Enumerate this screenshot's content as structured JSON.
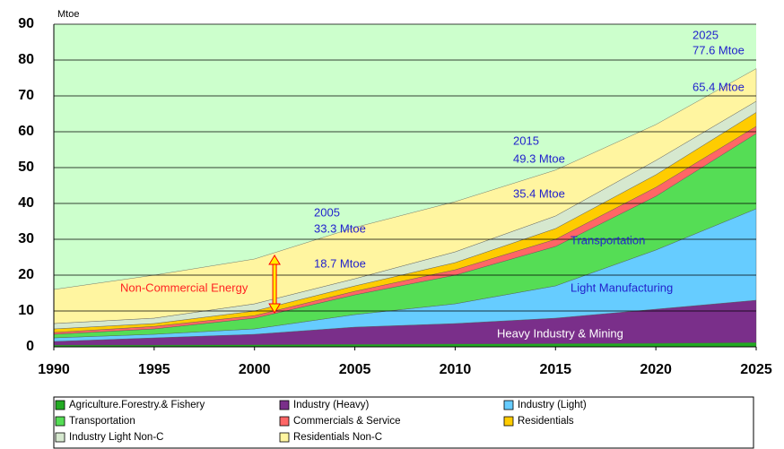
{
  "chart_data": {
    "type": "stacked_area",
    "y_label": "Mtoe",
    "x": [
      1990,
      1995,
      2000,
      2005,
      2010,
      2015,
      2020,
      2025
    ],
    "xlim": [
      1990,
      2025
    ],
    "xticks": [
      1990,
      1995,
      2000,
      2005,
      2010,
      2015,
      2020,
      2025
    ],
    "ylim": [
      0,
      90
    ],
    "yticks": [
      0,
      10,
      20,
      30,
      40,
      50,
      60,
      70,
      80,
      90
    ],
    "grid": true,
    "legend": "bottom",
    "series": [
      {
        "name": "Agriculture.Forestry.& Fishery",
        "color": "#22aa22",
        "values": [
          0.5,
          0.5,
          0.6,
          0.7,
          0.8,
          0.9,
          1.0,
          1.2
        ]
      },
      {
        "name": "Industry (Heavy)",
        "color": "#7a2f8a",
        "values": [
          1.0,
          2.0,
          2.9,
          4.8,
          5.7,
          7.1,
          9.5,
          11.8
        ]
      },
      {
        "name": "Industry (Light)",
        "color": "#66ccff",
        "values": [
          1.0,
          1.0,
          1.5,
          3.5,
          5.5,
          9.0,
          16.5,
          25.5
        ]
      },
      {
        "name": "Transportation",
        "color": "#55dd55",
        "values": [
          1.0,
          1.5,
          3.0,
          5.5,
          8.0,
          11.0,
          15.0,
          21.0
        ]
      },
      {
        "name": "Commercials & Service",
        "color": "#ff6666",
        "values": [
          0.5,
          0.7,
          0.7,
          1.0,
          1.5,
          2.0,
          2.5,
          2.0
        ]
      },
      {
        "name": "Residentials",
        "color": "#ffcc00",
        "values": [
          1.0,
          0.8,
          1.3,
          1.5,
          2.0,
          3.0,
          3.5,
          3.9
        ]
      },
      {
        "name": "Industry Light Non-C",
        "color": "#d6e8cf",
        "values": [
          1.5,
          1.5,
          2.0,
          2.0,
          3.0,
          3.5,
          4.0,
          3.1
        ]
      },
      {
        "name": "Residentials Non-C",
        "color": "#fff5a0",
        "values": [
          9.5,
          12,
          12.5,
          14.3,
          14,
          12.8,
          10,
          9.1
        ]
      }
    ],
    "annotations": [
      "2025",
      "77.6 Mtoe",
      "65.4 Mtoe",
      "2015",
      "49.3 Mtoe",
      "35.4 Mtoe",
      "2005",
      "33.3 Mtoe",
      "18.7 Mtoe",
      "Transportation",
      "Light Manufacturing",
      "Heavy Industry & Mining",
      "Non-Commercial Energy"
    ]
  }
}
